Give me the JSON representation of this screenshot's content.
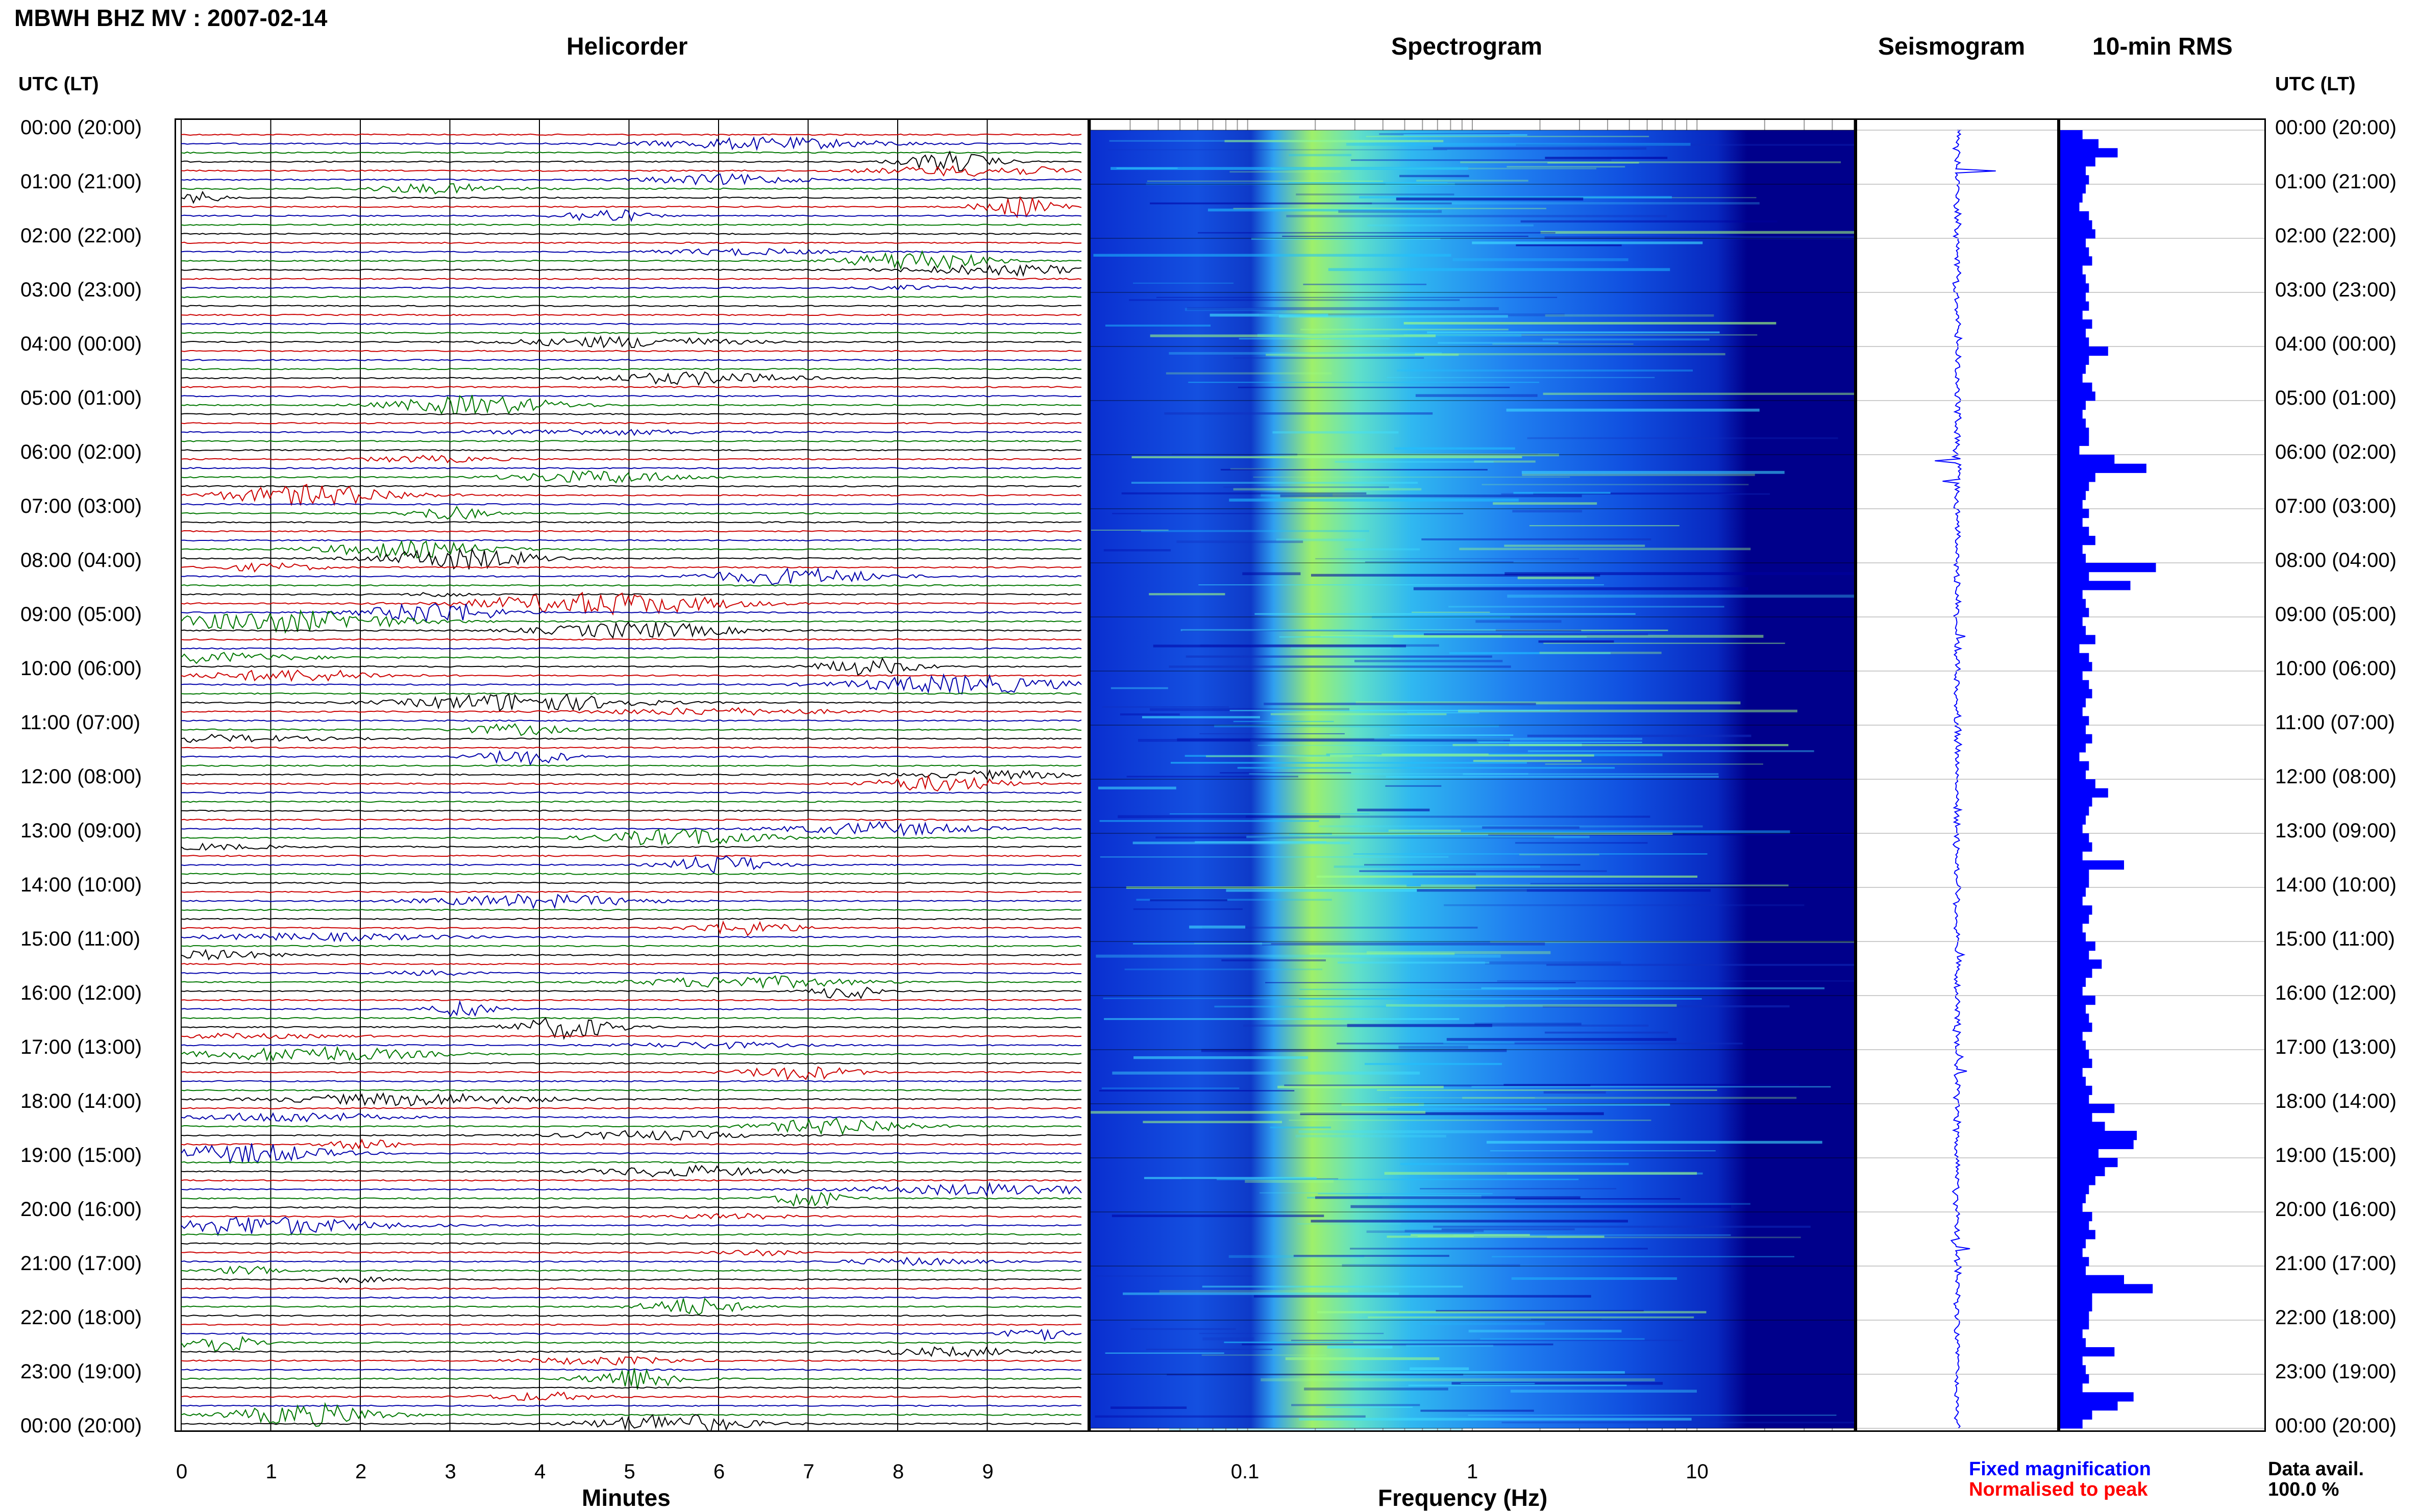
{
  "station_title": "MBWH BHZ MV : 2007-02-14",
  "panel_titles": {
    "helicorder": "Helicorder",
    "spectrogram": "Spectrogram",
    "seismogram": "Seismogram",
    "rms": "10-min RMS"
  },
  "axis_header_left": "UTC (LT)",
  "axis_header_right": "UTC (LT)",
  "time_labels": [
    "00:00 (20:00)",
    "01:00 (21:00)",
    "02:00 (22:00)",
    "03:00 (23:00)",
    "04:00 (00:00)",
    "05:00 (01:00)",
    "06:00 (02:00)",
    "07:00 (03:00)",
    "08:00 (04:00)",
    "09:00 (05:00)",
    "10:00 (06:00)",
    "11:00 (07:00)",
    "12:00 (08:00)",
    "13:00 (09:00)",
    "14:00 (10:00)",
    "15:00 (11:00)",
    "16:00 (12:00)",
    "17:00 (13:00)",
    "18:00 (14:00)",
    "19:00 (15:00)",
    "20:00 (16:00)",
    "21:00 (17:00)",
    "22:00 (18:00)",
    "23:00 (19:00)",
    "00:00 (20:00)"
  ],
  "helicorder_xlabel": "Minutes",
  "helicorder_ticks": [
    "0",
    "1",
    "2",
    "3",
    "4",
    "5",
    "6",
    "7",
    "8",
    "9"
  ],
  "spectrogram_xlabel": "Frequency (Hz)",
  "spectrogram_ticks": [
    "0.1",
    "1",
    "10"
  ],
  "legend": {
    "fixed": "Fixed magnification",
    "normalised": "Normalised to peak",
    "fixed_color": "#0000ff",
    "normalised_color": "#ff0000"
  },
  "data_avail_label": "Data avail.",
  "data_avail_value": "100.0 %",
  "colors": {
    "trace_cycle": [
      "#cc0000",
      "#0000aa",
      "#007700",
      "#000000"
    ],
    "rms_bar": "#0000ff",
    "spectrogram_bg": "#00008b"
  },
  "chart_data": [
    {
      "type": "line",
      "title": "Helicorder",
      "xlabel": "Minutes",
      "xlim": [
        0,
        10
      ],
      "ylim": [
        "00:00",
        "24:00"
      ],
      "rows": 144,
      "row_minutes": 10,
      "series_colors": [
        "red",
        "blue",
        "green",
        "black"
      ]
    },
    {
      "type": "heatmap",
      "title": "Spectrogram",
      "xlabel": "Frequency (Hz)",
      "x_scale": "log",
      "xlim": [
        0.02,
        50
      ],
      "ylim": [
        "00:00",
        "24:00"
      ],
      "peak_band_hz": [
        0.2,
        0.4
      ]
    },
    {
      "type": "line",
      "title": "Seismogram",
      "ylim": [
        "00:00",
        "24:00"
      ]
    },
    {
      "type": "bar",
      "title": "10-min RMS",
      "orientation": "horizontal",
      "x": [
        "00:00",
        "00:10",
        "00:20",
        "00:30",
        "00:40",
        "00:50",
        "01:00",
        "01:10",
        "01:20",
        "01:30",
        "01:40",
        "01:50",
        "02:00",
        "02:10",
        "02:20",
        "02:30",
        "02:40",
        "02:50",
        "03:00",
        "03:10",
        "03:20",
        "03:30",
        "03:40",
        "03:50",
        "04:00",
        "04:10",
        "04:20",
        "04:30",
        "04:40",
        "04:50",
        "05:00",
        "05:10",
        "05:20",
        "05:30",
        "05:40",
        "05:50",
        "06:00",
        "06:10",
        "06:20",
        "06:30",
        "06:40",
        "06:50",
        "07:00",
        "07:10",
        "07:20",
        "07:30",
        "07:40",
        "07:50",
        "08:00",
        "08:10",
        "08:20",
        "08:30",
        "08:40",
        "08:50",
        "09:00",
        "09:10",
        "09:20",
        "09:30",
        "09:40",
        "09:50",
        "10:00",
        "10:10",
        "10:20",
        "10:30",
        "10:40",
        "10:50",
        "11:00",
        "11:10",
        "11:20",
        "11:30",
        "11:40",
        "11:50",
        "12:00",
        "12:10",
        "12:20",
        "12:30",
        "12:40",
        "12:50",
        "13:00",
        "13:10",
        "13:20",
        "13:30",
        "13:40",
        "13:50",
        "14:00",
        "14:10",
        "14:20",
        "14:30",
        "14:40",
        "14:50",
        "15:00",
        "15:10",
        "15:20",
        "15:30",
        "15:40",
        "15:50",
        "16:00",
        "16:10",
        "16:20",
        "16:30",
        "16:40",
        "16:50",
        "17:00",
        "17:10",
        "17:20",
        "17:30",
        "17:40",
        "17:50",
        "18:00",
        "18:10",
        "18:20",
        "18:30",
        "18:40",
        "18:50",
        "19:00",
        "19:10",
        "19:20",
        "19:30",
        "19:40",
        "19:50",
        "20:00",
        "20:10",
        "20:20",
        "20:30",
        "20:40",
        "20:50",
        "21:00",
        "21:10",
        "21:20",
        "21:30",
        "21:40",
        "21:50",
        "22:00",
        "22:10",
        "22:20",
        "22:30",
        "22:40",
        "22:50",
        "23:00",
        "23:10",
        "23:20",
        "23:30",
        "23:40",
        "23:50"
      ],
      "values": [
        0.35,
        0.6,
        0.9,
        0.55,
        0.4,
        0.45,
        0.4,
        0.35,
        0.3,
        0.45,
        0.5,
        0.55,
        0.4,
        0.45,
        0.5,
        0.35,
        0.4,
        0.45,
        0.4,
        0.45,
        0.35,
        0.5,
        0.4,
        0.45,
        0.75,
        0.45,
        0.4,
        0.35,
        0.5,
        0.55,
        0.4,
        0.35,
        0.4,
        0.45,
        0.45,
        0.3,
        0.85,
        1.35,
        0.55,
        0.45,
        0.4,
        0.35,
        0.45,
        0.35,
        0.45,
        0.55,
        0.35,
        0.4,
        1.5,
        0.45,
        1.1,
        0.35,
        0.4,
        0.45,
        0.35,
        0.4,
        0.55,
        0.3,
        0.45,
        0.5,
        0.35,
        0.45,
        0.5,
        0.4,
        0.35,
        0.45,
        0.4,
        0.5,
        0.4,
        0.3,
        0.45,
        0.4,
        0.55,
        0.75,
        0.5,
        0.45,
        0.4,
        0.35,
        0.45,
        0.5,
        0.35,
        1.0,
        0.45,
        0.45,
        0.4,
        0.35,
        0.5,
        0.45,
        0.35,
        0.4,
        0.55,
        0.45,
        0.65,
        0.5,
        0.4,
        0.35,
        0.55,
        0.4,
        0.45,
        0.5,
        0.35,
        0.4,
        0.45,
        0.5,
        0.35,
        0.4,
        0.5,
        0.45,
        0.85,
        0.5,
        0.7,
        1.2,
        1.15,
        0.6,
        0.9,
        0.7,
        0.55,
        0.45,
        0.4,
        0.35,
        0.5,
        0.45,
        0.55,
        0.4,
        0.35,
        0.45,
        0.4,
        1.0,
        1.45,
        0.5,
        0.5,
        0.45,
        0.45,
        0.35,
        0.4,
        0.85,
        0.35,
        0.4,
        0.45,
        0.35,
        1.15,
        0.9,
        0.5,
        0.35
      ],
      "xlabel": "",
      "ylabel": ""
    }
  ]
}
